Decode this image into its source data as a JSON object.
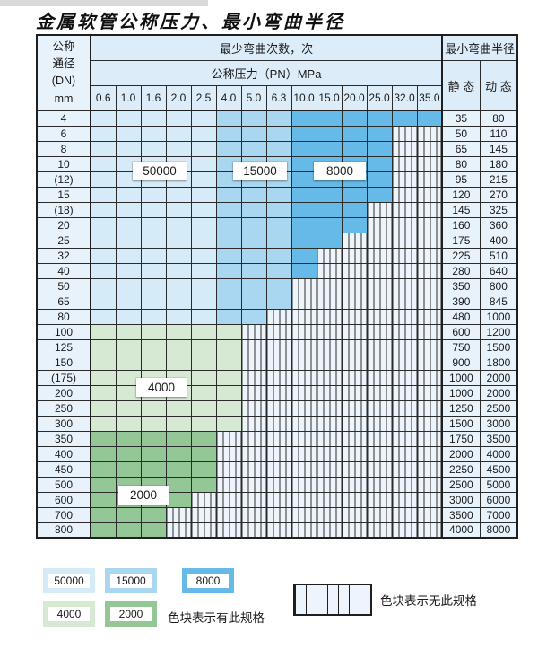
{
  "title": "金属软管公称压力、最小弯曲半径",
  "table": {
    "dn_header_lines": [
      "公称",
      "通径",
      "(DN)",
      "mm"
    ],
    "cycles_header": "最少弯曲次数，次",
    "pressure_header": "公称压力（PN）MPa",
    "pressure_columns": [
      "0.6",
      "1.0",
      "1.6",
      "2.0",
      "2.5",
      "4.0",
      "5.0",
      "6.3",
      "10.0",
      "15.0",
      "20.0",
      "25.0",
      "32.0",
      "35.0"
    ],
    "radius_header": "最小弯曲半径",
    "static_header": "静 态",
    "dynamic_header": "动 态",
    "rows": [
      {
        "dn": "4",
        "colored": 14,
        "palette": "blue",
        "static": "35",
        "dynamic": "80"
      },
      {
        "dn": "6",
        "colored": 12,
        "palette": "blue",
        "static": "50",
        "dynamic": "110"
      },
      {
        "dn": "8",
        "colored": 12,
        "palette": "blue",
        "static": "65",
        "dynamic": "145"
      },
      {
        "dn": "10",
        "colored": 12,
        "palette": "blue",
        "static": "80",
        "dynamic": "180"
      },
      {
        "dn": "(12)",
        "colored": 12,
        "palette": "blue",
        "static": "95",
        "dynamic": "215"
      },
      {
        "dn": "15",
        "colored": 12,
        "palette": "blue",
        "static": "120",
        "dynamic": "270"
      },
      {
        "dn": "(18)",
        "colored": 11,
        "palette": "blue",
        "static": "145",
        "dynamic": "325"
      },
      {
        "dn": "20",
        "colored": 11,
        "palette": "blue",
        "static": "160",
        "dynamic": "360"
      },
      {
        "dn": "25",
        "colored": 10,
        "palette": "blue",
        "static": "175",
        "dynamic": "400"
      },
      {
        "dn": "32",
        "colored": 9,
        "palette": "blue",
        "static": "225",
        "dynamic": "510"
      },
      {
        "dn": "40",
        "colored": 9,
        "palette": "blue",
        "static": "280",
        "dynamic": "640"
      },
      {
        "dn": "50",
        "colored": 8,
        "palette": "blue",
        "static": "350",
        "dynamic": "800"
      },
      {
        "dn": "65",
        "colored": 8,
        "palette": "blue",
        "static": "390",
        "dynamic": "845"
      },
      {
        "dn": "80",
        "colored": 7,
        "palette": "blue",
        "static": "480",
        "dynamic": "1000"
      },
      {
        "dn": "100",
        "colored": 6,
        "palette": "g4",
        "static": "600",
        "dynamic": "1200"
      },
      {
        "dn": "125",
        "colored": 6,
        "palette": "g4",
        "static": "750",
        "dynamic": "1500"
      },
      {
        "dn": "150",
        "colored": 6,
        "palette": "g4",
        "static": "900",
        "dynamic": "1800"
      },
      {
        "dn": "(175)",
        "colored": 6,
        "palette": "g4",
        "static": "1000",
        "dynamic": "2000"
      },
      {
        "dn": "200",
        "colored": 6,
        "palette": "g4",
        "static": "1000",
        "dynamic": "2000"
      },
      {
        "dn": "250",
        "colored": 6,
        "palette": "g4",
        "static": "1250",
        "dynamic": "2500"
      },
      {
        "dn": "300",
        "colored": 6,
        "palette": "g4",
        "static": "1500",
        "dynamic": "3000"
      },
      {
        "dn": "350",
        "colored": 5,
        "palette": "g2",
        "static": "1750",
        "dynamic": "3500"
      },
      {
        "dn": "400",
        "colored": 5,
        "palette": "g2",
        "static": "2000",
        "dynamic": "4000"
      },
      {
        "dn": "450",
        "colored": 5,
        "palette": "g2",
        "static": "2250",
        "dynamic": "4500"
      },
      {
        "dn": "500",
        "colored": 5,
        "palette": "g2",
        "static": "2500",
        "dynamic": "5000"
      },
      {
        "dn": "600",
        "colored": 4,
        "palette": "g2",
        "static": "3000",
        "dynamic": "6000"
      },
      {
        "dn": "700",
        "colored": 3,
        "palette": "g2",
        "static": "3500",
        "dynamic": "7000"
      },
      {
        "dn": "800",
        "colored": 3,
        "palette": "g2",
        "static": "4000",
        "dynamic": "8000"
      }
    ]
  },
  "zone_labels": {
    "z50000": "50000",
    "z15000": "15000",
    "z8000": "8000",
    "z4000": "4000",
    "z2000": "2000"
  },
  "colors": {
    "c50000": "#d6ebf8",
    "c15000": "#a9d6f0",
    "c8000": "#65bae7",
    "c4000": "#d6e9d2",
    "c2000": "#93c795",
    "hatch_bg": "#edf4fb",
    "hatch_line": "#2e2e2e",
    "header_bg": "#dcecf8",
    "side_bg": "#e8f2fb"
  },
  "legend": {
    "items": [
      {
        "label": "50000"
      },
      {
        "label": "15000"
      },
      {
        "label": "8000"
      },
      {
        "label": "4000"
      },
      {
        "label": "2000"
      }
    ],
    "has_spec_text": "色块表示有此规格",
    "no_spec_text": "色块表示无此规格"
  }
}
